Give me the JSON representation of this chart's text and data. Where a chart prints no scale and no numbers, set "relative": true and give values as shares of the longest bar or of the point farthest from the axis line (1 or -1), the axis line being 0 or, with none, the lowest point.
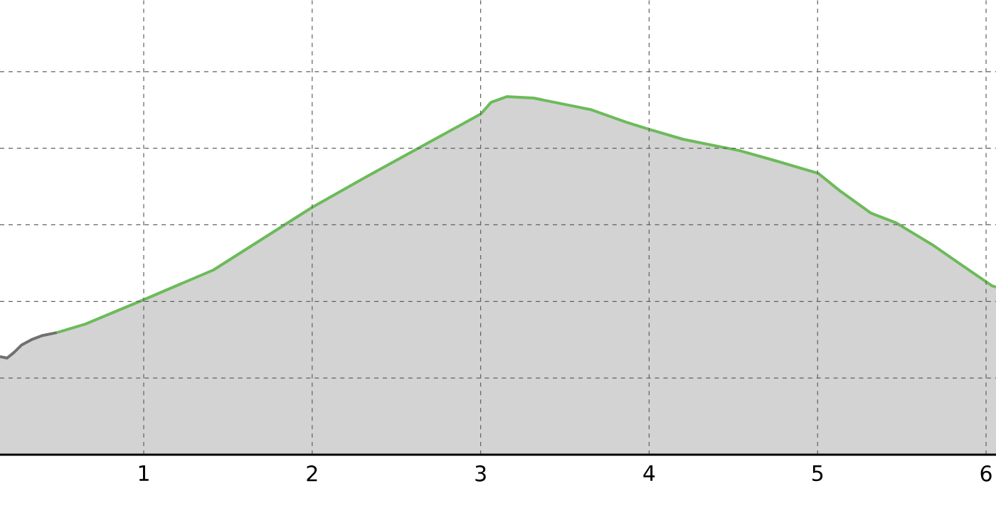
{
  "chart_data": {
    "type": "area",
    "relative": true,
    "grid": true,
    "xlim": [
      0.147,
      6.059
    ],
    "xticks": [
      1,
      2,
      3,
      4,
      5,
      6
    ],
    "series": [
      {
        "color": "#707070",
        "x": [
          0.147,
          0.189,
          0.231,
          0.274,
          0.333,
          0.4,
          0.485
        ],
        "values": [
          0.274,
          0.27,
          0.286,
          0.306,
          0.321,
          0.333,
          0.341
        ]
      },
      {
        "color": "#6cbb5a",
        "x": [
          0.485,
          0.654,
          1.0,
          1.414,
          1.997,
          2.343,
          2.681,
          3.002,
          3.061,
          3.154,
          3.314,
          3.525,
          3.652,
          3.863,
          3.998,
          4.201,
          4.539,
          4.75,
          5.003,
          5.13,
          5.316,
          5.468,
          5.679,
          5.848,
          6.034,
          6.059
        ],
        "values": [
          0.341,
          0.365,
          0.433,
          0.516,
          0.69,
          0.782,
          0.869,
          0.952,
          0.984,
          1.0,
          0.996,
          0.976,
          0.964,
          0.929,
          0.909,
          0.881,
          0.849,
          0.821,
          0.786,
          0.738,
          0.675,
          0.647,
          0.587,
          0.532,
          0.472,
          0.468
        ]
      }
    ]
  }
}
